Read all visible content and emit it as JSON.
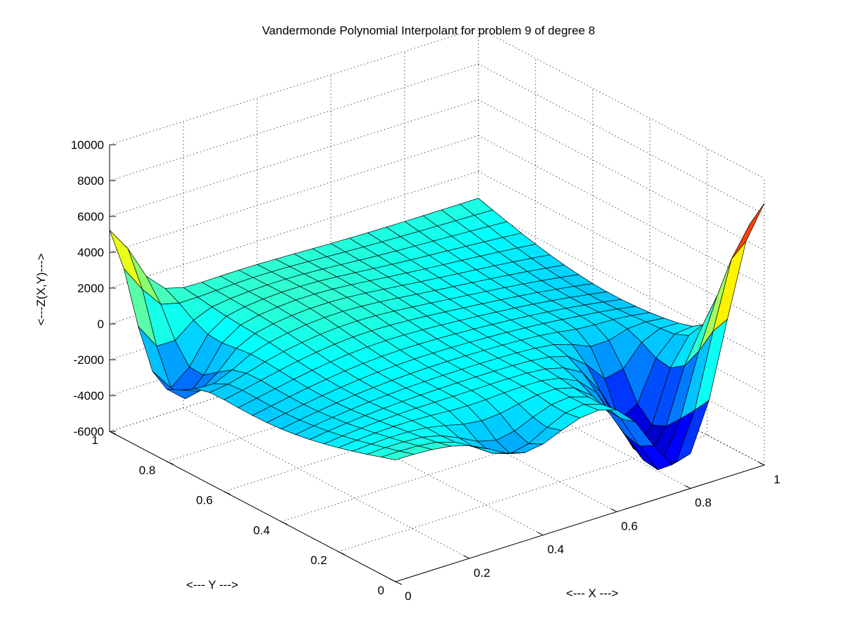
{
  "chart_data": {
    "type": "surface",
    "title": "Vandermonde Polynomial Interpolant for problem 9 of degree 8",
    "xlabel": "<--- X --->",
    "ylabel": "<--- Y --->",
    "zlabel": "<---Z(X,Y)--->",
    "xlim": [
      0,
      1
    ],
    "ylim": [
      0,
      1
    ],
    "zlim": [
      -6000,
      10000
    ],
    "x_ticks": [
      "0",
      "0.2",
      "0.4",
      "0.6",
      "0.8",
      "1"
    ],
    "y_ticks": [
      "0",
      "0.2",
      "0.4",
      "0.6",
      "0.8",
      "1"
    ],
    "z_ticks": [
      "-6000",
      "-4000",
      "-2000",
      "0",
      "2000",
      "4000",
      "6000",
      "8000",
      "10000"
    ],
    "grid": true,
    "colormap": "jet",
    "mesh_resolution": 20
  }
}
